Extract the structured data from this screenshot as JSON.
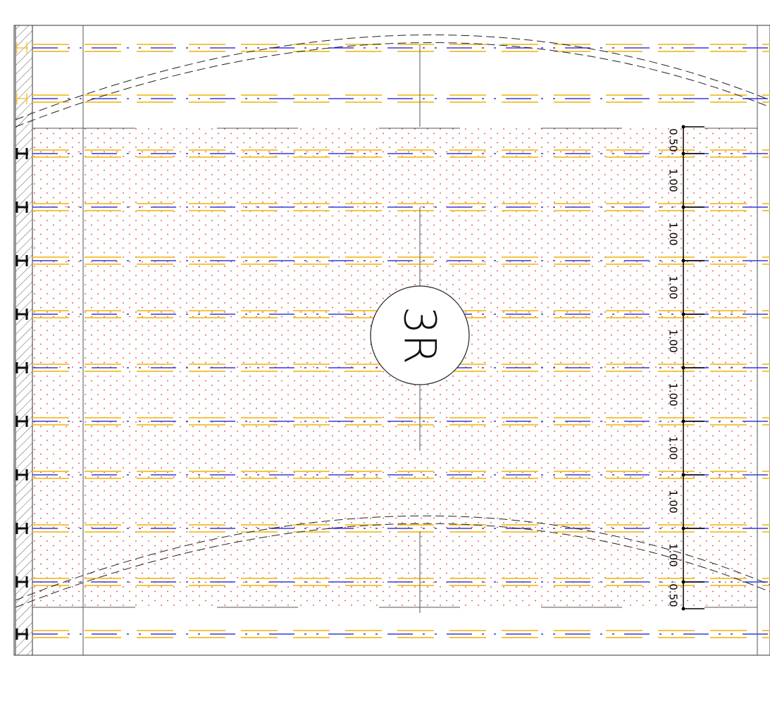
{
  "label": "3R",
  "dimensions": [
    "0.50",
    "1.00",
    "1.00",
    "1.00",
    "1.00",
    "1.00",
    "1.00",
    "1.00",
    "1.00",
    "0.50"
  ]
}
